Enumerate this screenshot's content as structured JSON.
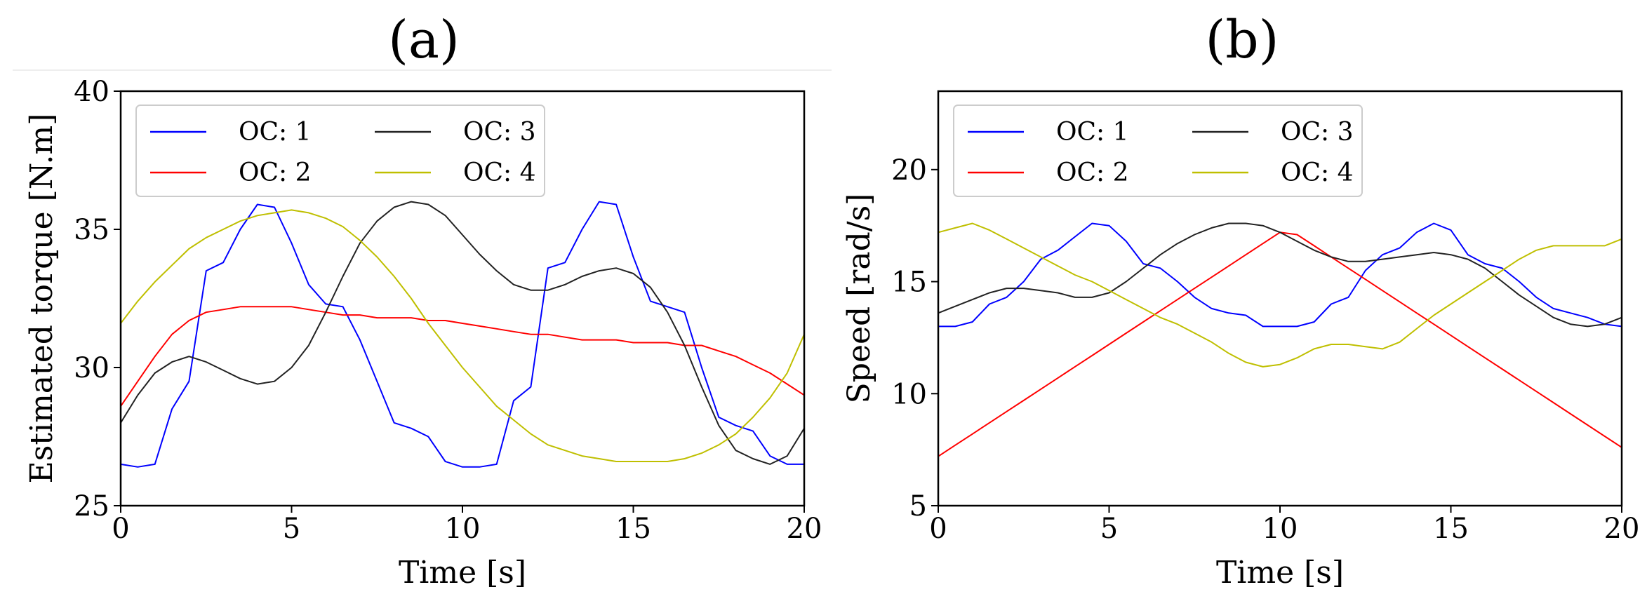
{
  "chart_data": [
    {
      "type": "line",
      "panel_title": "(a)",
      "xlabel": "Time [s]",
      "ylabel": "Estimated torque [N.m]",
      "xlim": [
        0,
        20
      ],
      "ylim": [
        25,
        40
      ],
      "xticks": [
        0,
        5,
        10,
        15,
        20
      ],
      "yticks": [
        25,
        30,
        35,
        40
      ],
      "legend_position": "top-left",
      "x": [
        0,
        0.5,
        1,
        1.5,
        2,
        2.5,
        3,
        3.5,
        4,
        4.5,
        5,
        5.5,
        6,
        6.5,
        7,
        7.5,
        8,
        8.5,
        9,
        9.5,
        10,
        10.5,
        11,
        11.5,
        12,
        12.5,
        13,
        13.5,
        14,
        14.5,
        15,
        15.5,
        16,
        16.5,
        17,
        17.5,
        18,
        18.5,
        19,
        19.5,
        20
      ],
      "series": [
        {
          "name": "OC: 1",
          "color": "#0000ff",
          "values": [
            26.5,
            26.4,
            26.5,
            28.5,
            29.5,
            33.5,
            33.8,
            35.0,
            35.9,
            35.8,
            34.5,
            33.0,
            32.3,
            32.2,
            31.0,
            29.5,
            28.0,
            27.8,
            27.5,
            26.6,
            26.4,
            26.4,
            26.5,
            28.8,
            29.3,
            33.6,
            33.8,
            35.0,
            36.0,
            35.9,
            34.0,
            32.4,
            32.2,
            32.0,
            30.0,
            28.2,
            27.9,
            27.7,
            26.8,
            26.5,
            26.5
          ]
        },
        {
          "name": "OC: 2",
          "color": "#ff0000",
          "values": [
            28.6,
            29.5,
            30.4,
            31.2,
            31.7,
            32.0,
            32.1,
            32.2,
            32.2,
            32.2,
            32.2,
            32.1,
            32.0,
            31.9,
            31.9,
            31.8,
            31.8,
            31.8,
            31.7,
            31.7,
            31.6,
            31.5,
            31.4,
            31.3,
            31.2,
            31.2,
            31.1,
            31.0,
            31.0,
            31.0,
            30.9,
            30.9,
            30.9,
            30.8,
            30.8,
            30.6,
            30.4,
            30.1,
            29.8,
            29.4,
            29.0
          ]
        },
        {
          "name": "OC: 3",
          "color": "#222222",
          "values": [
            28.0,
            29.0,
            29.8,
            30.2,
            30.4,
            30.2,
            29.9,
            29.6,
            29.4,
            29.5,
            30.0,
            30.8,
            32.0,
            33.3,
            34.5,
            35.3,
            35.8,
            36.0,
            35.9,
            35.5,
            34.8,
            34.1,
            33.5,
            33.0,
            32.8,
            32.8,
            33.0,
            33.3,
            33.5,
            33.6,
            33.4,
            32.9,
            32.0,
            30.8,
            29.3,
            27.9,
            27.0,
            26.7,
            26.5,
            26.8,
            27.8
          ]
        },
        {
          "name": "OC: 4",
          "color": "#bfbf00",
          "values": [
            31.6,
            32.4,
            33.1,
            33.7,
            34.3,
            34.7,
            35.0,
            35.3,
            35.5,
            35.6,
            35.7,
            35.6,
            35.4,
            35.1,
            34.6,
            34.0,
            33.3,
            32.5,
            31.6,
            30.8,
            30.0,
            29.3,
            28.6,
            28.1,
            27.6,
            27.2,
            27.0,
            26.8,
            26.7,
            26.6,
            26.6,
            26.6,
            26.6,
            26.7,
            26.9,
            27.2,
            27.6,
            28.2,
            28.9,
            29.8,
            31.2
          ]
        }
      ]
    },
    {
      "type": "line",
      "panel_title": "(b)",
      "xlabel": "Time [s]",
      "ylabel": "Speed [rad/s]",
      "xlim": [
        0,
        20
      ],
      "ylim": [
        5,
        23.5
      ],
      "xticks": [
        0,
        5,
        10,
        15,
        20
      ],
      "yticks": [
        5,
        10,
        15,
        20
      ],
      "legend_position": "top-left",
      "x": [
        0,
        0.5,
        1,
        1.5,
        2,
        2.5,
        3,
        3.5,
        4,
        4.5,
        5,
        5.5,
        6,
        6.5,
        7,
        7.5,
        8,
        8.5,
        9,
        9.5,
        10,
        10.5,
        11,
        11.5,
        12,
        12.5,
        13,
        13.5,
        14,
        14.5,
        15,
        15.5,
        16,
        16.5,
        17,
        17.5,
        18,
        18.5,
        19,
        19.5,
        20
      ],
      "series": [
        {
          "name": "OC: 1",
          "color": "#0000ff",
          "values": [
            13.0,
            13.0,
            13.2,
            14.0,
            14.3,
            15.0,
            16.0,
            16.4,
            17.0,
            17.6,
            17.5,
            16.8,
            15.8,
            15.6,
            15.0,
            14.3,
            13.8,
            13.6,
            13.5,
            13.0,
            13.0,
            13.0,
            13.2,
            14.0,
            14.3,
            15.5,
            16.2,
            16.5,
            17.2,
            17.6,
            17.3,
            16.2,
            15.8,
            15.6,
            15.0,
            14.3,
            13.8,
            13.6,
            13.4,
            13.1,
            13.0
          ]
        },
        {
          "name": "OC: 2",
          "color": "#ff0000",
          "values": [
            7.2,
            7.7,
            8.2,
            8.7,
            9.2,
            9.7,
            10.2,
            10.7,
            11.2,
            11.7,
            12.2,
            12.7,
            13.2,
            13.7,
            14.2,
            14.7,
            15.2,
            15.7,
            16.2,
            16.7,
            17.2,
            17.1,
            16.6,
            16.1,
            15.6,
            15.1,
            14.6,
            14.1,
            13.6,
            13.1,
            12.6,
            12.1,
            11.6,
            11.1,
            10.6,
            10.1,
            9.6,
            9.1,
            8.6,
            8.1,
            7.6
          ]
        },
        {
          "name": "OC: 3",
          "color": "#222222",
          "values": [
            13.6,
            13.9,
            14.2,
            14.5,
            14.7,
            14.7,
            14.6,
            14.5,
            14.3,
            14.3,
            14.5,
            15.0,
            15.6,
            16.2,
            16.7,
            17.1,
            17.4,
            17.6,
            17.6,
            17.5,
            17.2,
            16.8,
            16.4,
            16.1,
            15.9,
            15.9,
            16.0,
            16.1,
            16.2,
            16.3,
            16.2,
            16.0,
            15.6,
            15.0,
            14.4,
            13.9,
            13.4,
            13.1,
            13.0,
            13.1,
            13.4
          ]
        },
        {
          "name": "OC: 4",
          "color": "#bfbf00",
          "values": [
            17.2,
            17.4,
            17.6,
            17.3,
            16.9,
            16.5,
            16.1,
            15.7,
            15.3,
            15.0,
            14.6,
            14.2,
            13.8,
            13.4,
            13.1,
            12.7,
            12.3,
            11.8,
            11.4,
            11.2,
            11.3,
            11.6,
            12.0,
            12.2,
            12.2,
            12.1,
            12.0,
            12.3,
            12.9,
            13.5,
            14.0,
            14.5,
            15.0,
            15.5,
            16.0,
            16.4,
            16.6,
            16.6,
            16.6,
            16.6,
            16.9
          ]
        }
      ]
    }
  ]
}
